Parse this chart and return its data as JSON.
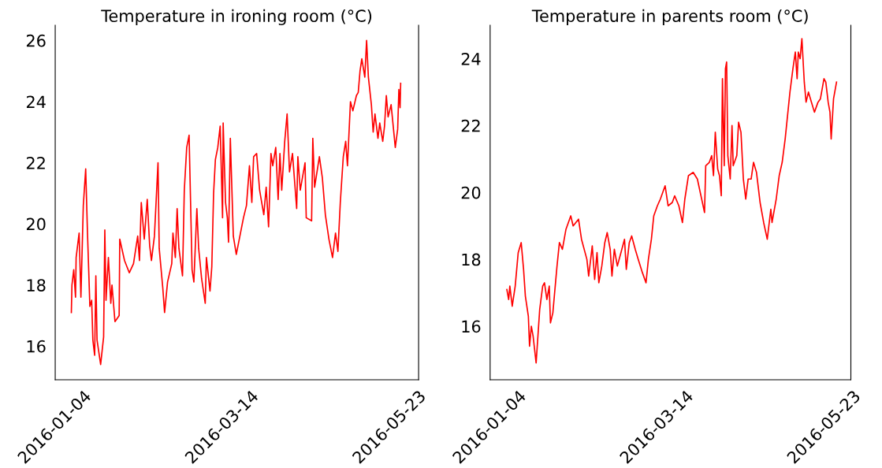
{
  "chart_data": [
    {
      "type": "line",
      "title": "Temperature in ironing room (°C)",
      "color": "#ff0000",
      "grid": false,
      "line_style": "solid",
      "xlim": [
        "2016-01-04",
        "2016-06-04"
      ],
      "xticks": [
        "2016-01-04",
        "2016-03-14",
        "2016-05-23"
      ],
      "ylim": [
        14.9,
        26.5
      ],
      "yticks": [
        16,
        18,
        20,
        22,
        24,
        26
      ],
      "x": [
        "2016-01-10T18:00",
        "2016-01-11T00:00",
        "2016-01-11T18:00",
        "2016-01-12T12:00",
        "2016-01-12T18:00",
        "2016-01-14T00:00",
        "2016-01-14T18:00",
        "2016-01-15T18:00",
        "2016-01-16T18:00",
        "2016-01-17T12:00",
        "2016-01-18T12:00",
        "2016-01-19T06:00",
        "2016-01-19T18:00",
        "2016-01-20T12:00",
        "2016-01-21T00:00",
        "2016-01-21T12:00",
        "2016-01-23T00:00",
        "2016-01-24T06:00",
        "2016-01-24T18:00",
        "2016-01-25T06:00",
        "2016-01-26T06:00",
        "2016-01-27T06:00",
        "2016-01-27T18:00",
        "2016-01-29T00:00",
        "2016-01-30T18:00",
        "2016-01-31T00:00",
        "2016-02-02T00:00",
        "2016-02-04T00:00",
        "2016-02-05T18:00",
        "2016-02-07T12:00",
        "2016-02-08T06:00",
        "2016-02-09T00:00",
        "2016-02-10T06:00",
        "2016-02-11T12:00",
        "2016-02-12T12:00",
        "2016-02-13T06:00",
        "2016-02-14T12:00",
        "2016-02-16T00:00",
        "2016-02-16T12:00",
        "2016-02-18T00:00",
        "2016-02-18T18:00",
        "2016-02-20T00:00",
        "2016-02-21T18:00",
        "2016-02-22T06:00",
        "2016-02-23T06:00",
        "2016-02-24T00:00",
        "2016-02-24T18:00",
        "2016-02-26T06:00",
        "2016-02-27T00:00",
        "2016-02-28T00:00",
        "2016-02-29T00:00",
        "2016-03-01T06:00",
        "2016-03-02T00:00",
        "2016-03-03T06:00",
        "2016-03-04T00:00",
        "2016-03-05T06:00",
        "2016-03-06T18:00",
        "2016-03-07T06:00",
        "2016-03-08T18:00",
        "2016-03-09T12:00",
        "2016-03-10T06:00",
        "2016-03-11T00:00",
        "2016-03-12T00:00",
        "2016-03-13T00:00",
        "2016-03-14T00:00",
        "2016-03-14T06:00",
        "2016-03-15T06:00",
        "2016-03-16T00:00",
        "2016-03-16T12:00",
        "2016-03-17T06:00",
        "2016-03-18T12:00",
        "2016-03-19T18:00",
        "2016-03-21T06:00",
        "2016-03-22T18:00",
        "2016-03-24T00:00",
        "2016-03-25T06:00",
        "2016-03-26T06:00",
        "2016-03-27T00:00",
        "2016-03-28T06:00",
        "2016-03-29T12:00",
        "2016-03-31T06:00",
        "2016-04-01T06:00",
        "2016-04-02T06:00",
        "2016-04-03T06:00",
        "2016-04-04T00:00",
        "2016-04-05T06:00",
        "2016-04-06T06:00",
        "2016-04-07T00:00",
        "2016-04-07T18:00",
        "2016-04-09T00:00",
        "2016-04-10T00:00",
        "2016-04-11T00:00",
        "2016-04-12T06:00",
        "2016-04-14T00:00",
        "2016-04-14T12:00",
        "2016-04-15T12:00",
        "2016-04-17T12:00",
        "2016-04-18T00:00",
        "2016-04-20T06:00",
        "2016-04-20T18:00",
        "2016-04-21T12:00",
        "2016-04-23T12:00",
        "2016-04-24T18:00",
        "2016-04-26T00:00",
        "2016-04-27T12:00",
        "2016-04-29T00:00",
        "2016-04-30T06:00",
        "2016-05-01T06:00",
        "2016-05-02T06:00",
        "2016-05-03T12:00",
        "2016-05-04T12:00",
        "2016-05-05T06:00",
        "2016-05-06T12:00",
        "2016-05-07T12:00",
        "2016-05-09T00:00",
        "2016-05-09T18:00",
        "2016-05-10T12:00",
        "2016-05-11T06:00",
        "2016-05-12T12:00",
        "2016-05-13T06:00",
        "2016-05-14T00:00",
        "2016-05-15T06:00",
        "2016-05-16T00:00",
        "2016-05-16T18:00",
        "2016-05-18T00:00",
        "2016-05-18T18:00",
        "2016-05-20T00:00",
        "2016-05-20T18:00",
        "2016-05-21T12:00",
        "2016-05-22T06:00",
        "2016-05-23T12:00",
        "2016-05-24T12:00",
        "2016-05-25T06:00",
        "2016-05-26T06:00",
        "2016-05-26T18:00",
        "2016-05-27T06:00",
        "2016-05-27T12:00"
      ],
      "values": [
        17.1,
        18.0,
        18.5,
        17.6,
        18.9,
        19.7,
        17.6,
        20.6,
        21.8,
        19.7,
        17.3,
        17.5,
        16.2,
        15.7,
        18.3,
        16.2,
        15.4,
        16.3,
        19.8,
        17.5,
        18.9,
        17.4,
        18.0,
        16.8,
        17.0,
        19.5,
        18.8,
        18.4,
        18.7,
        19.6,
        18.8,
        20.7,
        19.5,
        20.8,
        19.3,
        18.8,
        19.6,
        22.0,
        19.2,
        17.9,
        17.1,
        18.1,
        18.7,
        19.7,
        18.9,
        20.5,
        19.2,
        18.3,
        21.1,
        22.5,
        22.9,
        18.5,
        18.1,
        20.5,
        19.2,
        18.2,
        17.4,
        18.9,
        17.8,
        18.6,
        21.0,
        22.1,
        22.5,
        23.2,
        20.2,
        23.3,
        20.7,
        20.2,
        19.4,
        22.8,
        19.6,
        19.0,
        19.6,
        20.2,
        20.6,
        21.9,
        20.7,
        22.2,
        22.3,
        21.1,
        20.3,
        21.2,
        19.9,
        22.3,
        21.9,
        22.5,
        20.8,
        22.3,
        21.1,
        22.7,
        23.6,
        21.7,
        22.3,
        20.5,
        22.2,
        21.1,
        22.0,
        20.2,
        20.1,
        22.8,
        21.2,
        22.2,
        21.5,
        20.3,
        19.5,
        18.9,
        19.7,
        19.1,
        20.7,
        22.2,
        22.7,
        21.9,
        24.0,
        23.7,
        24.2,
        24.3,
        25.0,
        25.4,
        24.8,
        26.0,
        24.8,
        23.9,
        23.0,
        23.6,
        22.8,
        23.3,
        22.7,
        23.2,
        24.2,
        23.5,
        23.9,
        23.1,
        22.5,
        23.1,
        24.4,
        23.8,
        24.6
      ]
    },
    {
      "type": "line",
      "title": "Temperature in parents room (°C)",
      "color": "#ff0000",
      "grid": false,
      "line_style": "solid",
      "xlim": [
        "2016-01-04",
        "2016-06-03"
      ],
      "xticks": [
        "2016-01-04",
        "2016-03-14",
        "2016-05-23"
      ],
      "ylim": [
        14.4,
        25.0
      ],
      "yticks": [
        16,
        18,
        20,
        22,
        24
      ],
      "x": [
        "2016-01-11T00:00",
        "2016-01-11T18:00",
        "2016-01-12T06:00",
        "2016-01-13T06:00",
        "2016-01-14T12:00",
        "2016-01-15T18:00",
        "2016-01-17T00:00",
        "2016-01-18T00:00",
        "2016-01-18T18:00",
        "2016-01-20T00:00",
        "2016-01-20T12:00",
        "2016-01-21T06:00",
        "2016-01-22T00:00",
        "2016-01-23T06:00",
        "2016-01-24T18:00",
        "2016-01-26T00:00",
        "2016-01-26T18:00",
        "2016-01-27T18:00",
        "2016-01-28T18:00",
        "2016-01-29T06:00",
        "2016-01-30T06:00",
        "2016-01-30T18:00",
        "2016-02-01T00:00",
        "2016-02-02T00:00",
        "2016-02-03T06:00",
        "2016-02-04T18:00",
        "2016-02-06T18:00",
        "2016-02-07T18:00",
        "2016-02-10T00:00",
        "2016-02-11T06:00",
        "2016-02-13T12:00",
        "2016-02-14T06:00",
        "2016-02-15T18:00",
        "2016-02-16T18:00",
        "2016-02-17T18:00",
        "2016-02-18T12:00",
        "2016-02-19T18:00",
        "2016-02-21T00:00",
        "2016-02-22T00:00",
        "2016-02-23T06:00",
        "2016-02-24T00:00",
        "2016-02-25T00:00",
        "2016-02-26T06:00",
        "2016-02-27T18:00",
        "2016-02-29T06:00",
        "2016-03-01T00:00",
        "2016-03-02T06:00",
        "2016-03-03T06:00",
        "2016-03-04T18:00",
        "2016-03-06T00:00",
        "2016-03-07T18:00",
        "2016-03-09T06:00",
        "2016-03-10T06:00",
        "2016-03-11T12:00",
        "2016-03-12T12:00",
        "2016-03-14T00:00",
        "2016-03-15T06:00",
        "2016-03-17T06:00",
        "2016-03-18T12:00",
        "2016-03-20T06:00",
        "2016-03-21T06:00",
        "2016-03-23T00:00",
        "2016-03-24T12:00",
        "2016-03-25T12:00",
        "2016-03-27T00:00",
        "2016-03-29T00:00",
        "2016-03-30T18:00",
        "2016-04-01T06:00",
        "2016-04-02T18:00",
        "2016-04-03T06:00",
        "2016-04-04T18:00",
        "2016-04-05T18:00",
        "2016-04-06T12:00",
        "2016-04-07T06:00",
        "2016-04-08T06:00",
        "2016-04-09T00:00",
        "2016-04-09T18:00",
        "2016-04-10T06:00",
        "2016-04-11T00:00",
        "2016-04-11T12:00",
        "2016-04-12T00:00",
        "2016-04-12T12:00",
        "2016-04-13T12:00",
        "2016-04-14T06:00",
        "2016-04-14T18:00",
        "2016-04-16T06:00",
        "2016-04-17T00:00",
        "2016-04-18T00:00",
        "2016-04-19T00:00",
        "2016-04-20T00:00",
        "2016-04-21T00:00",
        "2016-04-22T06:00",
        "2016-04-23T06:00",
        "2016-04-24T12:00",
        "2016-04-26T00:00",
        "2016-04-27T12:00",
        "2016-04-29T00:00",
        "2016-04-30T12:00",
        "2016-05-01T00:00",
        "2016-05-02T18:00",
        "2016-05-04T00:00",
        "2016-05-05T06:00",
        "2016-05-06T12:00",
        "2016-05-07T12:00",
        "2016-05-08T12:00",
        "2016-05-09T18:00",
        "2016-05-10T18:00",
        "2016-05-11T12:00",
        "2016-05-12T00:00",
        "2016-05-12T18:00",
        "2016-05-13T12:00",
        "2016-05-14T12:00",
        "2016-05-15T06:00",
        "2016-05-16T06:00",
        "2016-05-17T12:00",
        "2016-05-18T18:00",
        "2016-05-20T06:00",
        "2016-05-21T06:00",
        "2016-05-22T18:00",
        "2016-05-23T12:00",
        "2016-05-24T12:00",
        "2016-05-25T06:00",
        "2016-05-25T18:00",
        "2016-05-26T06:00",
        "2016-05-26T18:00",
        "2016-05-28T00:00"
      ],
      "values": [
        17.1,
        16.8,
        17.2,
        16.6,
        17.2,
        18.2,
        18.5,
        17.7,
        16.9,
        16.3,
        15.4,
        16.0,
        15.7,
        14.9,
        16.5,
        17.2,
        17.3,
        16.8,
        17.2,
        16.1,
        16.4,
        16.8,
        17.8,
        18.5,
        18.3,
        18.9,
        19.3,
        19.0,
        19.2,
        18.6,
        18.0,
        17.5,
        18.4,
        17.4,
        18.2,
        17.3,
        17.8,
        18.5,
        18.8,
        18.3,
        17.5,
        18.3,
        17.8,
        18.2,
        18.6,
        17.7,
        18.5,
        18.7,
        18.3,
        18.0,
        17.6,
        17.3,
        18.0,
        18.6,
        19.3,
        19.6,
        19.8,
        20.2,
        19.6,
        19.7,
        19.9,
        19.6,
        19.1,
        19.8,
        20.5,
        20.6,
        20.4,
        19.9,
        19.4,
        20.8,
        20.9,
        21.1,
        20.5,
        21.8,
        20.7,
        20.5,
        19.9,
        23.4,
        20.8,
        23.7,
        23.9,
        21.1,
        20.4,
        22.0,
        20.8,
        21.1,
        22.1,
        21.8,
        20.4,
        19.8,
        20.4,
        20.4,
        20.9,
        20.6,
        19.7,
        19.1,
        18.6,
        19.5,
        19.1,
        19.8,
        20.5,
        20.9,
        21.6,
        22.3,
        23.0,
        23.7,
        24.2,
        23.4,
        24.2,
        24.0,
        24.6,
        23.3,
        22.7,
        23.0,
        22.7,
        22.4,
        22.7,
        22.8,
        23.4,
        23.3,
        22.7,
        22.4,
        21.6,
        22.2,
        22.8,
        23.3
      ]
    }
  ]
}
